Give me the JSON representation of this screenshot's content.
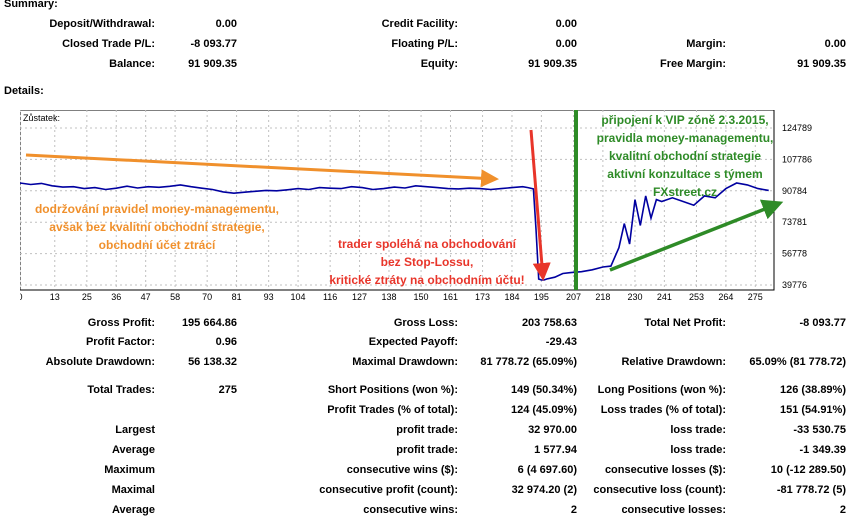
{
  "summary": {
    "title": "Summary:",
    "deposit_label": "Deposit/Withdrawal:",
    "deposit_value": "0.00",
    "closed_pl_label": "Closed Trade P/L:",
    "closed_pl_value": "-8 093.77",
    "balance_label": "Balance:",
    "balance_value": "91 909.35",
    "credit_label": "Credit Facility:",
    "credit_value": "0.00",
    "floating_label": "Floating P/L:",
    "floating_value": "0.00",
    "equity_label": "Equity:",
    "equity_value": "91 909.35",
    "margin_label": "Margin:",
    "margin_value": "0.00",
    "free_margin_label": "Free Margin:",
    "free_margin_value": "91 909.35"
  },
  "details": {
    "title": "Details:",
    "gross_profit_label": "Gross Profit:",
    "gross_profit_value": "195 664.86",
    "gross_loss_label": "Gross Loss:",
    "gross_loss_value": "203 758.63",
    "net_profit_label": "Total Net Profit:",
    "net_profit_value": "-8 093.77",
    "profit_factor_label": "Profit Factor:",
    "profit_factor_value": "0.96",
    "expected_payoff_label": "Expected Payoff:",
    "expected_payoff_value": "-29.43",
    "abs_dd_label": "Absolute Drawdown:",
    "abs_dd_value": "56 138.32",
    "max_dd_label": "Maximal Drawdown:",
    "max_dd_value": "81 778.72 (65.09%)",
    "rel_dd_label": "Relative Drawdown:",
    "rel_dd_value": "65.09% (81 778.72)",
    "total_trades_label": "Total Trades:",
    "total_trades_value": "275",
    "short_label": "Short Positions (won %):",
    "short_value": "149 (50.34%)",
    "long_label": "Long Positions (won %):",
    "long_value": "126 (38.89%)",
    "profit_trades_label": "Profit Trades (% of total):",
    "profit_trades_value": "124 (45.09%)",
    "loss_trades_label": "Loss trades (% of total):",
    "loss_trades_value": "151 (54.91%)",
    "rows": [
      {
        "a": "Largest",
        "b": "profit trade:",
        "bv": "32 970.00",
        "c": "loss trade:",
        "cv": "-33 530.75"
      },
      {
        "a": "Average",
        "b": "profit trade:",
        "bv": "1 577.94",
        "c": "loss trade:",
        "cv": "-1 349.39"
      },
      {
        "a": "Maximum",
        "b": "consecutive wins ($):",
        "bv": "6 (4 697.60)",
        "c": "consecutive losses ($):",
        "cv": "10 (-12 289.50)"
      },
      {
        "a": "Maximal",
        "b": "consecutive profit (count):",
        "bv": "32 974.20 (2)",
        "c": "consecutive loss (count):",
        "cv": "-81 778.72 (5)"
      },
      {
        "a": "Average",
        "b": "consecutive wins:",
        "bv": "2",
        "c": "consecutive losses:",
        "cv": "2"
      }
    ]
  },
  "chart_data": {
    "type": "line",
    "title": "Zůstatek:",
    "x_ticks": [
      "0",
      "13",
      "25",
      "36",
      "47",
      "58",
      "70",
      "81",
      "93",
      "104",
      "116",
      "127",
      "138",
      "150",
      "161",
      "173",
      "184",
      "195",
      "207",
      "218",
      "230",
      "241",
      "253",
      "264",
      "275"
    ],
    "y_ticks": [
      "124789",
      "107786",
      "90784",
      "73781",
      "56778",
      "39776"
    ],
    "ylim": [
      39776,
      124789
    ],
    "xlim": [
      0,
      282
    ],
    "series": [
      {
        "color": "#0000a0",
        "x": [
          0,
          4,
          8,
          12,
          16,
          20,
          24,
          28,
          32,
          36,
          40,
          44,
          48,
          52,
          56,
          60,
          64,
          68,
          72,
          76,
          80,
          84,
          88,
          92,
          96,
          100,
          104,
          108,
          112,
          116,
          120,
          124,
          128,
          132,
          136,
          140,
          144,
          148,
          152,
          156,
          160,
          164,
          168,
          172,
          176,
          180,
          184,
          188,
          190,
          192,
          193,
          194,
          195,
          196,
          197,
          200,
          203,
          206,
          210,
          214,
          218,
          221,
          224,
          226,
          228,
          230,
          232,
          234,
          236,
          238,
          240,
          244,
          248,
          252,
          256,
          260,
          264,
          268,
          272,
          276,
          280
        ],
        "y": [
          95000,
          94200,
          94800,
          93500,
          92800,
          93000,
          92000,
          92500,
          91500,
          92200,
          93300,
          92300,
          93000,
          92700,
          93200,
          94000,
          93000,
          92200,
          91500,
          90200,
          89500,
          90000,
          90500,
          91000,
          90800,
          91300,
          92000,
          91500,
          92500,
          92200,
          92000,
          93000,
          92500,
          91500,
          92000,
          92800,
          92300,
          93500,
          93000,
          92500,
          92000,
          91800,
          92200,
          92000,
          91500,
          92000,
          92500,
          93000,
          92500,
          91800,
          70000,
          43000,
          42500,
          42500,
          43000,
          44000,
          46000,
          46500,
          47000,
          48000,
          49500,
          50000,
          60000,
          73000,
          62000,
          86000,
          72000,
          88000,
          76000,
          86000,
          85000,
          87000,
          85000,
          83000,
          88000,
          87000,
          92000,
          95000,
          94000,
          92000,
          91000
        ]
      }
    ]
  },
  "annotations": {
    "orange_text": [
      "dodržování pravidel money-managementu,",
      "avšak bez kvalitní obchodní strategie,",
      "obchodní účet ztrácí"
    ],
    "red_text": [
      "trader spoléhá na obchodování",
      "bez Stop-Lossu,",
      "kritické ztráty na obchodním účtu!"
    ],
    "green_text": [
      "připojení k VIP zóně 2.3.2015,",
      "pravidla money-managementu,",
      "kvalitní obchodní strategie",
      "aktivní konzultace s týmem",
      "FXstreet.cz"
    ],
    "orange_color": "#f0902c",
    "red_color": "#e8352a",
    "green_color": "#2e8b27"
  }
}
